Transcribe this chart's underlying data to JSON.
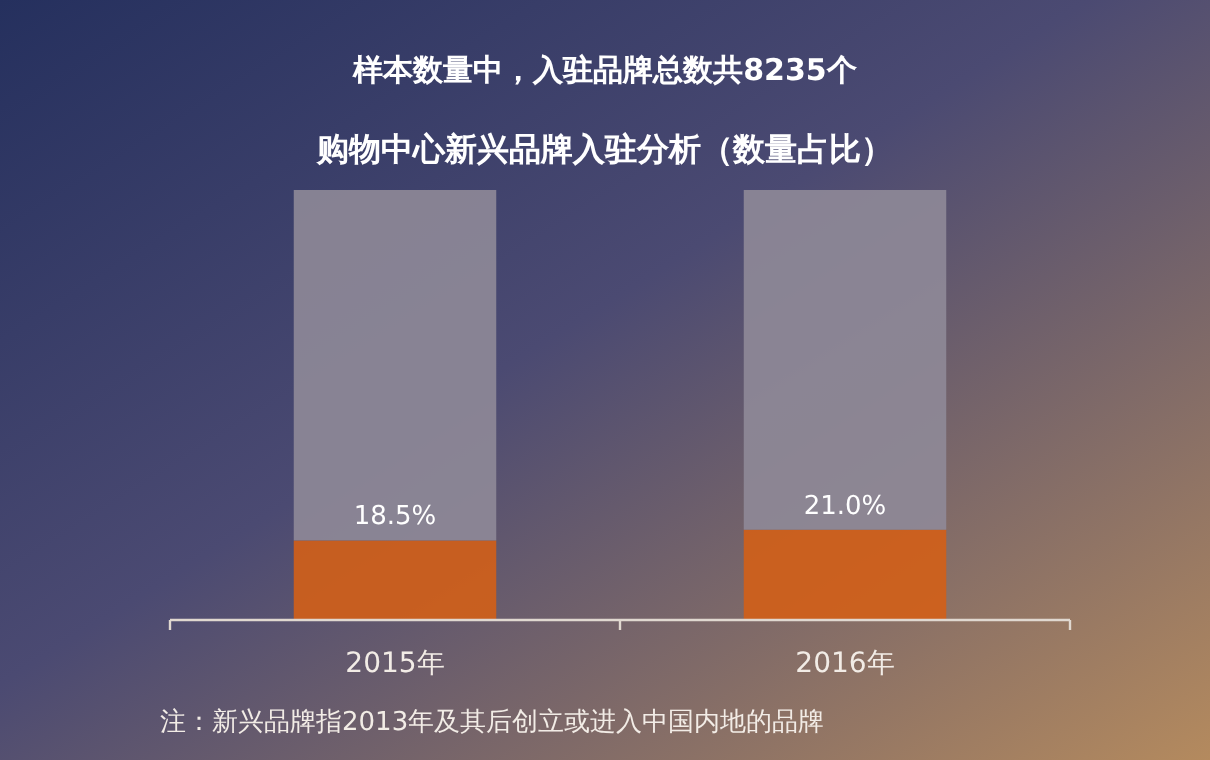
{
  "chart_data": {
    "type": "bar",
    "stacked": true,
    "title": "样本数量中，入驻品牌总数共8235个",
    "subtitle": "购物中心新兴品牌入驻分析（数量占比）",
    "categories": [
      "2015年",
      "2016年"
    ],
    "series": [
      {
        "color": "#d35f17",
        "values": [
          18.5,
          21.0
        ],
        "value_labels": [
          "18.5%",
          "21.0%"
        ]
      },
      {
        "color": "#8f8a98",
        "values": [
          81.5,
          79.0
        ]
      }
    ],
    "annotations": [
      "注：新兴品牌指2013年及其后创立或进入中国内地的品牌"
    ]
  }
}
